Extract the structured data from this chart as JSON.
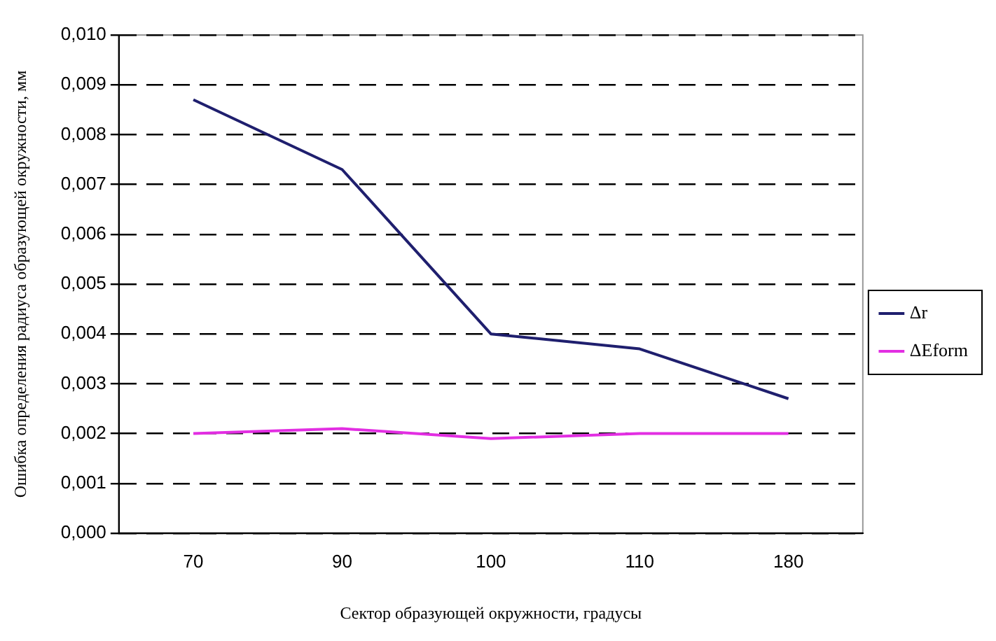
{
  "chart_data": {
    "type": "line",
    "xlabel": "Сектор образующей окружности, градусы",
    "ylabel": "Ошибка определения радиуса образующей окружности, мм",
    "categories": [
      "70",
      "90",
      "100",
      "110",
      "180"
    ],
    "series": [
      {
        "name": "Δr",
        "color": "#1f1f6e",
        "values": [
          0.0087,
          0.0073,
          0.004,
          0.0037,
          0.0027
        ]
      },
      {
        "name": "ΔEform",
        "color": "#e22ee2",
        "values": [
          0.002,
          0.0021,
          0.0019,
          0.002,
          0.002
        ]
      }
    ],
    "ylim": [
      0,
      0.01
    ],
    "yticks": [
      {
        "value": 0,
        "label": "0,000"
      },
      {
        "value": 0.001,
        "label": "0,001"
      },
      {
        "value": 0.002,
        "label": "0,002"
      },
      {
        "value": 0.003,
        "label": "0,003"
      },
      {
        "value": 0.004,
        "label": "0,004"
      },
      {
        "value": 0.005,
        "label": "0,005"
      },
      {
        "value": 0.006,
        "label": "0,006"
      },
      {
        "value": 0.007,
        "label": "0,007"
      },
      {
        "value": 0.008,
        "label": "0,008"
      },
      {
        "value": 0.009,
        "label": "0,009"
      },
      {
        "value": 0.01,
        "label": "0,010"
      }
    ],
    "grid": "y",
    "legend": "right",
    "marker": "none",
    "line_style": "solid"
  }
}
